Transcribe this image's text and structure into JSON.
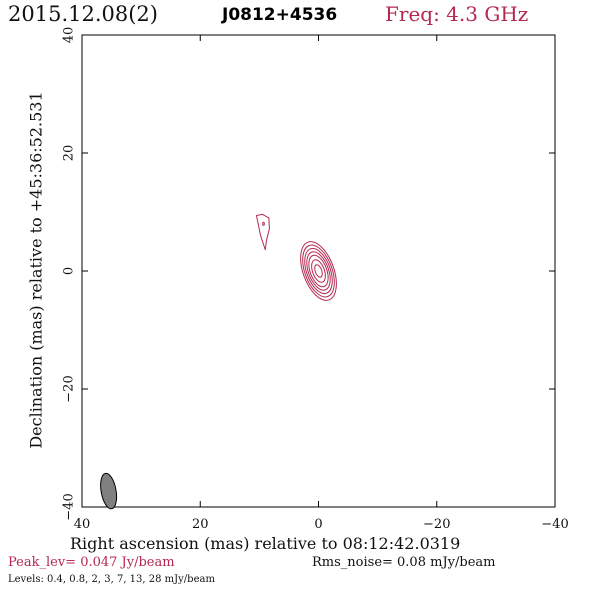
{
  "header": {
    "date": "2015.12.08(2)",
    "source": "J0812+4536",
    "freq_text": "Freq: 4.3 GHz"
  },
  "colors": {
    "accent": "#b5284f",
    "contour": "#b5284f",
    "beam_fill": "#808080",
    "axis": "#000000"
  },
  "chart_data": {
    "type": "contour",
    "xlabel": "Right ascension (mas) relative to 08:12:42.0319",
    "ylabel": "Declination (mas) relative to +45:36:52.531",
    "xlim": [
      40,
      -40
    ],
    "ylim": [
      -40,
      40
    ],
    "x_ticks": [
      40,
      20,
      0,
      -20,
      -40
    ],
    "y_ticks": [
      -40,
      -20,
      0,
      20,
      40
    ],
    "x_tick_labels": [
      "40",
      "20",
      "0",
      "−20",
      "−40"
    ],
    "y_tick_labels": [
      "−40",
      "−20",
      "0",
      "20",
      "40"
    ],
    "peak_text": "Peak_lev=  0.047 Jy/beam",
    "rms_text": "Rms_noise= 0.08 mJy/beam",
    "levels_text": "Levels: 0.4,  0.8,    2,    3,    7,   13,   28 mJy/beam",
    "levels_mJy": [
      0.4,
      0.8,
      2,
      3,
      7,
      13,
      28
    ],
    "core": {
      "x": 0.0,
      "y": 0.0,
      "contours": [
        {
          "level": 0.4,
          "semi_major": 5.2,
          "semi_minor": 2.6,
          "pa_deg": 20
        },
        {
          "level": 0.8,
          "semi_major": 4.6,
          "semi_minor": 2.3,
          "pa_deg": 20
        },
        {
          "level": 2,
          "semi_major": 4.0,
          "semi_minor": 2.0,
          "pa_deg": 20
        },
        {
          "level": 3,
          "semi_major": 3.4,
          "semi_minor": 1.7,
          "pa_deg": 20
        },
        {
          "level": 7,
          "semi_major": 2.8,
          "semi_minor": 1.4,
          "pa_deg": 20
        },
        {
          "level": 13,
          "semi_major": 2.0,
          "semi_minor": 1.0,
          "pa_deg": 20
        },
        {
          "level": 28,
          "semi_major": 1.1,
          "semi_minor": 0.55,
          "pa_deg": 20
        }
      ]
    },
    "secondary_component": {
      "level": 0.4,
      "outline": [
        [
          9.0,
          3.6
        ],
        [
          9.8,
          6.0
        ],
        [
          10.2,
          8.0
        ],
        [
          10.5,
          9.4
        ],
        [
          9.5,
          9.6
        ],
        [
          8.4,
          9.0
        ],
        [
          8.3,
          7.2
        ],
        [
          8.8,
          5.2
        ]
      ],
      "inner_x": 9.3,
      "inner_y": 8.0
    },
    "beam": {
      "x": 35.5,
      "y": -37.3,
      "semi_major": 1.9,
      "semi_minor": 0.9,
      "pa_deg": -10
    }
  }
}
